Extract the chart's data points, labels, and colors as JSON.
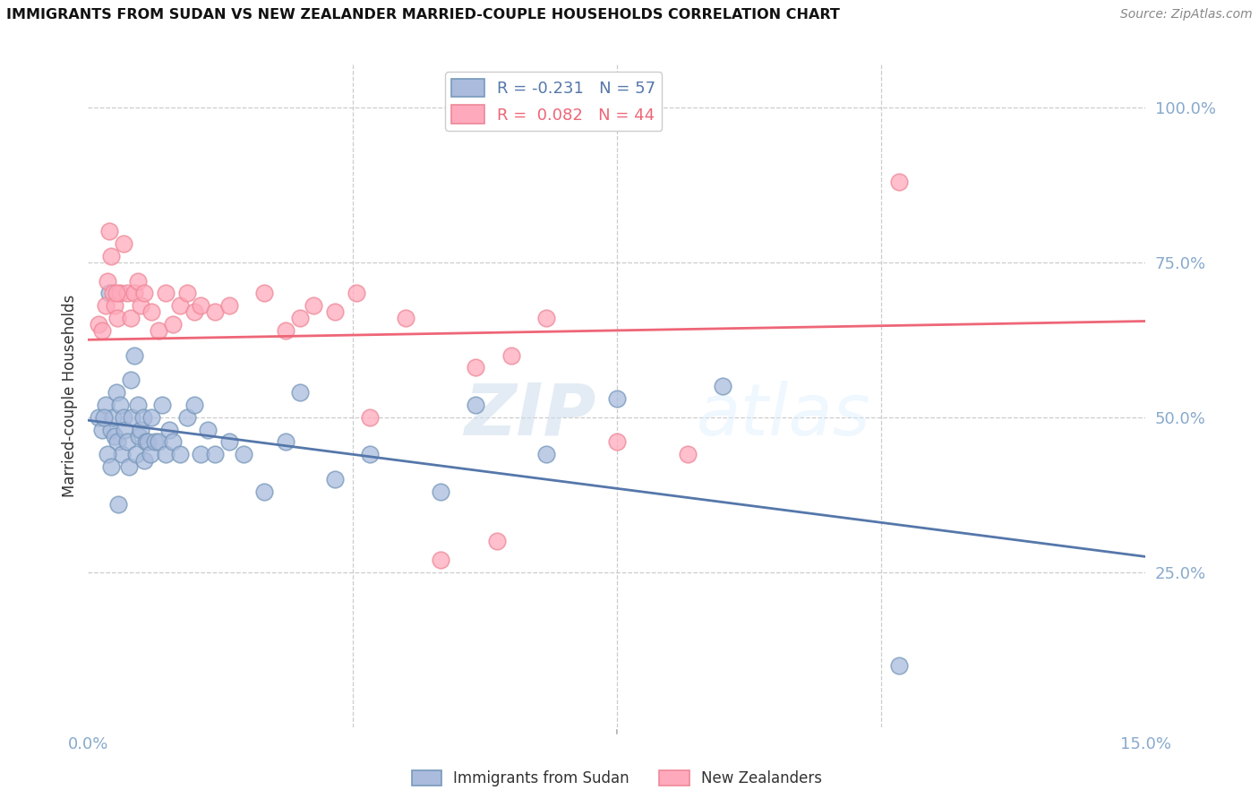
{
  "title": "IMMIGRANTS FROM SUDAN VS NEW ZEALANDER MARRIED-COUPLE HOUSEHOLDS CORRELATION CHART",
  "source": "Source: ZipAtlas.com",
  "ylabel": "Married-couple Households",
  "xlim": [
    0.0,
    15.0
  ],
  "ylim": [
    0.0,
    107.0
  ],
  "blue_face": "#AABBDD",
  "blue_edge": "#7799BB",
  "pink_face": "#FFAABC",
  "pink_edge": "#EE8899",
  "blue_line": "#5577AA",
  "pink_line": "#EE6677",
  "grid_color": "#CCCCCC",
  "tick_color": "#88AACC",
  "watermark": "ZIPatlas",
  "blue_scatter_x": [
    0.15,
    0.2,
    0.25,
    0.3,
    0.32,
    0.35,
    0.38,
    0.4,
    0.42,
    0.45,
    0.48,
    0.5,
    0.52,
    0.55,
    0.58,
    0.6,
    0.62,
    0.65,
    0.68,
    0.7,
    0.72,
    0.75,
    0.78,
    0.8,
    0.82,
    0.85,
    0.88,
    0.9,
    0.95,
    1.0,
    1.05,
    1.1,
    1.15,
    1.2,
    1.3,
    1.4,
    1.5,
    1.6,
    1.7,
    1.8,
    2.0,
    2.2,
    2.5,
    2.8,
    3.0,
    3.5,
    4.0,
    5.0,
    5.5,
    6.5,
    7.5,
    9.0,
    11.5,
    0.22,
    0.28,
    0.33,
    0.43
  ],
  "blue_scatter_y": [
    50,
    48,
    52,
    70,
    48,
    50,
    47,
    54,
    46,
    52,
    44,
    50,
    48,
    46,
    42,
    56,
    50,
    60,
    44,
    52,
    47,
    48,
    50,
    43,
    46,
    46,
    44,
    50,
    46,
    46,
    52,
    44,
    48,
    46,
    44,
    50,
    52,
    44,
    48,
    44,
    46,
    44,
    38,
    46,
    54,
    40,
    44,
    38,
    52,
    44,
    53,
    55,
    10,
    50,
    44,
    42,
    36
  ],
  "pink_scatter_x": [
    0.15,
    0.2,
    0.25,
    0.28,
    0.32,
    0.35,
    0.38,
    0.42,
    0.45,
    0.5,
    0.55,
    0.6,
    0.65,
    0.7,
    0.75,
    0.8,
    0.9,
    1.0,
    1.1,
    1.2,
    1.3,
    1.4,
    1.5,
    1.6,
    1.8,
    2.0,
    2.5,
    3.0,
    3.5,
    4.5,
    5.5,
    6.5,
    7.5,
    11.5,
    0.3,
    0.4,
    2.8,
    4.0,
    6.0,
    8.5,
    5.0,
    3.2,
    3.8,
    5.8
  ],
  "pink_scatter_y": [
    65,
    64,
    68,
    72,
    76,
    70,
    68,
    66,
    70,
    78,
    70,
    66,
    70,
    72,
    68,
    70,
    67,
    64,
    70,
    65,
    68,
    70,
    67,
    68,
    67,
    68,
    70,
    66,
    67,
    66,
    58,
    66,
    46,
    88,
    80,
    70,
    64,
    50,
    60,
    44,
    27,
    68,
    70,
    30
  ],
  "blue_trend_x": [
    0.0,
    15.0
  ],
  "blue_trend_y": [
    49.5,
    27.5
  ],
  "pink_trend_x": [
    0.0,
    15.0
  ],
  "pink_trend_y": [
    62.5,
    65.5
  ],
  "xticks": [
    0.0,
    15.0
  ],
  "yticks_right": [
    25,
    50,
    75,
    100
  ],
  "ytick_labels_right": [
    "25.0%",
    "50.0%",
    "75.0%",
    "100.0%"
  ],
  "xtick_labels": [
    "0.0%",
    "15.0%"
  ]
}
